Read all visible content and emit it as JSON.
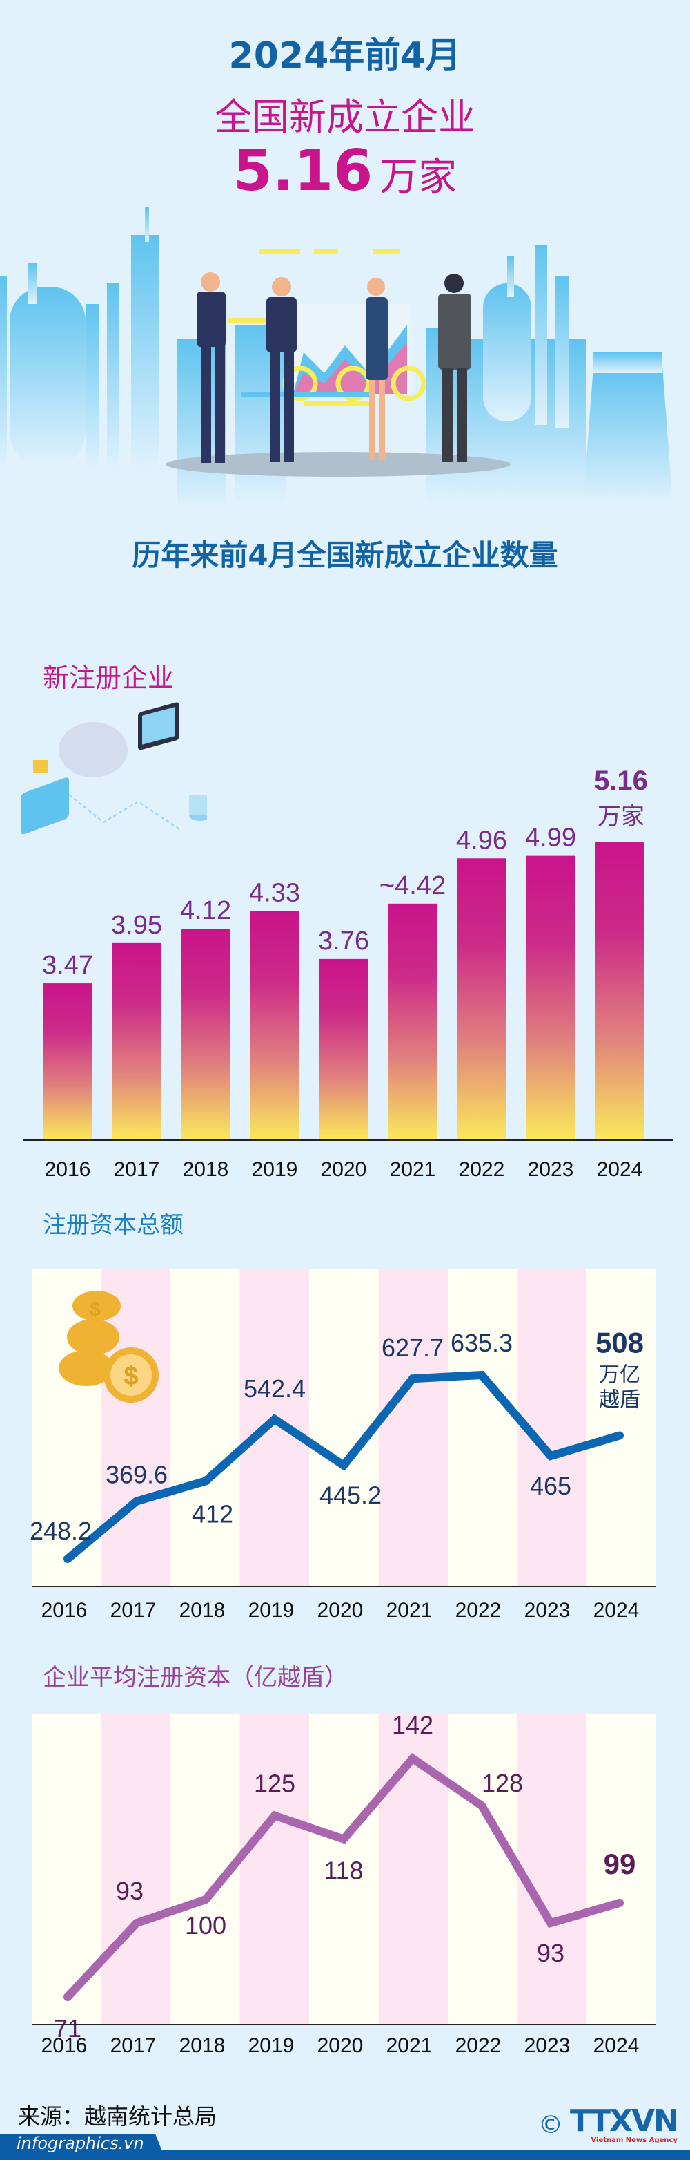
{
  "header": {
    "line1": "2024年前4月",
    "line2": "全国新成立企业",
    "big_number": "5.16",
    "big_unit": "万家"
  },
  "section_title": "历年来前4月全国新成立企业数量",
  "colors": {
    "blue": "#1263a6",
    "magenta": "#c9148b",
    "purple": "#7a2a8c",
    "line_blue": "#0b67b4",
    "line_purple": "#a965ad",
    "stripe_pink": "#fde6f2",
    "stripe_cream": "#fffff3",
    "bg": "#e1f2fd"
  },
  "chart_data": [
    {
      "type": "bar",
      "title": "新注册企业",
      "categories": [
        "2016",
        "2017",
        "2018",
        "2019",
        "2020",
        "2021",
        "2022",
        "2023",
        "2024"
      ],
      "values": [
        3.47,
        3.95,
        4.12,
        4.33,
        3.76,
        4.42,
        4.96,
        4.99,
        5.16
      ],
      "labels": [
        "3.47",
        "3.95",
        "4.12",
        "4.33",
        "3.76",
        "~4.42",
        "4.96",
        "4.99",
        "5.16"
      ],
      "highlight_unit": "万家",
      "xlabel": "",
      "ylabel": ""
    },
    {
      "type": "line",
      "title": "注册资本总额",
      "categories": [
        "2016",
        "2017",
        "2018",
        "2019",
        "2020",
        "2021",
        "2022",
        "2023",
        "2024"
      ],
      "values": [
        248.2,
        369.6,
        412,
        542.4,
        445.2,
        627.7,
        635.3,
        465,
        508
      ],
      "labels": [
        "248.2",
        "369.6",
        "412",
        "542.4",
        "445.2",
        "627.7",
        "635.3",
        "465",
        "508"
      ],
      "highlight_unit_line1": "万亿",
      "highlight_unit_line2": "越盾"
    },
    {
      "type": "line",
      "title": "企业平均注册资本（亿越盾）",
      "categories": [
        "2016",
        "2017",
        "2018",
        "2019",
        "2020",
        "2021",
        "2022",
        "2023",
        "2024"
      ],
      "values": [
        71,
        93,
        100,
        125,
        118,
        142,
        128,
        93,
        99
      ],
      "labels": [
        "71",
        "93",
        "100",
        "125",
        "118",
        "142",
        "128",
        "93",
        "99"
      ]
    }
  ],
  "footer": {
    "source": "来源：越南统计总局",
    "site": "infographics.vn",
    "copyright": "©",
    "logo_text": "TTXVN",
    "logo_sub": "Vietnam News Agency"
  }
}
